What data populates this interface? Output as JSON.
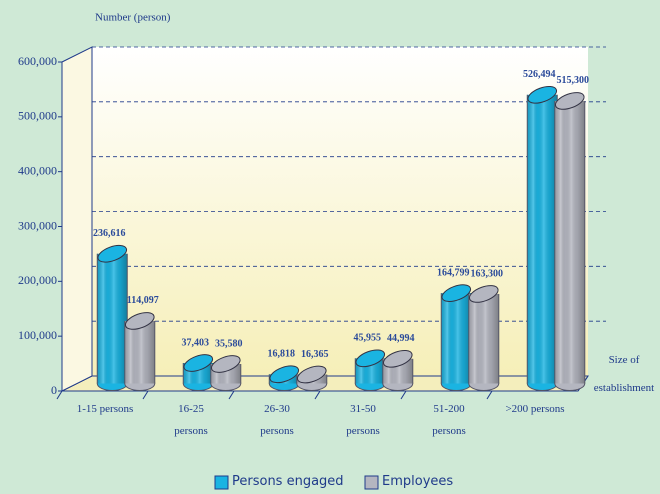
{
  "chart_data": {
    "type": "cylinder-bar",
    "y_axis_label": "Number (person)",
    "x_axis_label": "Size of establishment",
    "categories": [
      "1-15 persons",
      "16-25 persons",
      "26-30 persons",
      "31-50 persons",
      "51-200 persons",
      ">200 persons"
    ],
    "series": [
      {
        "name": "Persons engaged",
        "color": "#1ab4e2",
        "values": [
          236616,
          37403,
          16818,
          45955,
          164799,
          526494
        ],
        "value_labels": [
          "236,616",
          "37,403",
          "16,818",
          "45,955",
          "164,799",
          "526,494"
        ]
      },
      {
        "name": "Employees",
        "color": "#b4b6c0",
        "values": [
          114097,
          35580,
          16365,
          44994,
          163300,
          515300
        ],
        "value_labels": [
          "114,097",
          "35,580",
          "16,365",
          "44,994",
          "163,300",
          "515,300"
        ]
      }
    ],
    "ylim": [
      0,
      600000
    ],
    "yticks": [
      0,
      {
        "value": 100000,
        "label": "100,000"
      },
      {
        "value": 200000,
        "label": "200,000"
      },
      {
        "value": 300000,
        "label": "300,000"
      },
      {
        "value": 400000,
        "label": "400,000"
      },
      {
        "value": 500000,
        "label": "500,000"
      },
      {
        "value": 600000,
        "label": "600,000"
      }
    ],
    "grid": true,
    "legend": "bottom"
  }
}
